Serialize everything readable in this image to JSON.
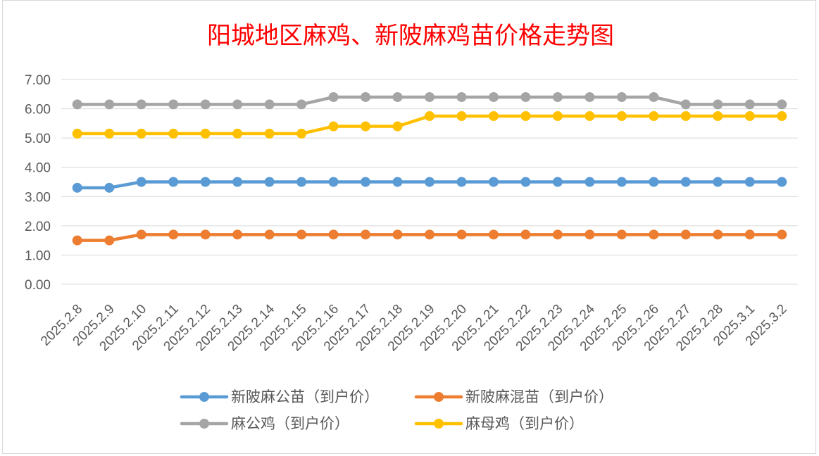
{
  "chart_data": {
    "type": "line",
    "title": "阳城地区麻鸡、新陂麻鸡苗价格走势图",
    "xlabel": "",
    "ylabel": "",
    "ylim": [
      0,
      7
    ],
    "ytick_labels": [
      "0.00",
      "1.00",
      "2.00",
      "3.00",
      "4.00",
      "5.00",
      "6.00",
      "7.00"
    ],
    "grid": "horizontal",
    "legend_position": "bottom",
    "categories": [
      "2025.2.8",
      "2025.2.9",
      "2025.2.10",
      "2025.2.11",
      "2025.2.12",
      "2025.2.13",
      "2025.2.14",
      "2025.2.15",
      "2025.2.16",
      "2025.2.17",
      "2025.2.18",
      "2025.2.19",
      "2025.2.20",
      "2025.2.21",
      "2025.2.22",
      "2025.2.23",
      "2025.2.24",
      "2025.2.25",
      "2025.2.26",
      "2025.2.27",
      "2025.2.28",
      "2025.3.1",
      "2025.3.2"
    ],
    "series": [
      {
        "name": "新陂麻公苗（到户价）",
        "color": "#5B9BD5",
        "values": [
          3.3,
          3.3,
          3.5,
          3.5,
          3.5,
          3.5,
          3.5,
          3.5,
          3.5,
          3.5,
          3.5,
          3.5,
          3.5,
          3.5,
          3.5,
          3.5,
          3.5,
          3.5,
          3.5,
          3.5,
          3.5,
          3.5,
          3.5
        ]
      },
      {
        "name": "新陂麻混苗（到户价）",
        "color": "#ED7D31",
        "values": [
          1.5,
          1.5,
          1.7,
          1.7,
          1.7,
          1.7,
          1.7,
          1.7,
          1.7,
          1.7,
          1.7,
          1.7,
          1.7,
          1.7,
          1.7,
          1.7,
          1.7,
          1.7,
          1.7,
          1.7,
          1.7,
          1.7,
          1.7
        ]
      },
      {
        "name": "麻公鸡（到户价）",
        "color": "#A5A5A5",
        "values": [
          6.15,
          6.15,
          6.15,
          6.15,
          6.15,
          6.15,
          6.15,
          6.15,
          6.4,
          6.4,
          6.4,
          6.4,
          6.4,
          6.4,
          6.4,
          6.4,
          6.4,
          6.4,
          6.4,
          6.15,
          6.15,
          6.15,
          6.15
        ]
      },
      {
        "name": "麻母鸡（到户价）",
        "color": "#FFC000",
        "values": [
          5.15,
          5.15,
          5.15,
          5.15,
          5.15,
          5.15,
          5.15,
          5.15,
          5.4,
          5.4,
          5.4,
          5.75,
          5.75,
          5.75,
          5.75,
          5.75,
          5.75,
          5.75,
          5.75,
          5.75,
          5.75,
          5.75,
          5.75
        ]
      }
    ]
  },
  "colors": {
    "title": "#FF0000",
    "axis_text": "#595959",
    "gridline": "#D9D9D9",
    "frame": "#D9D9D9"
  }
}
